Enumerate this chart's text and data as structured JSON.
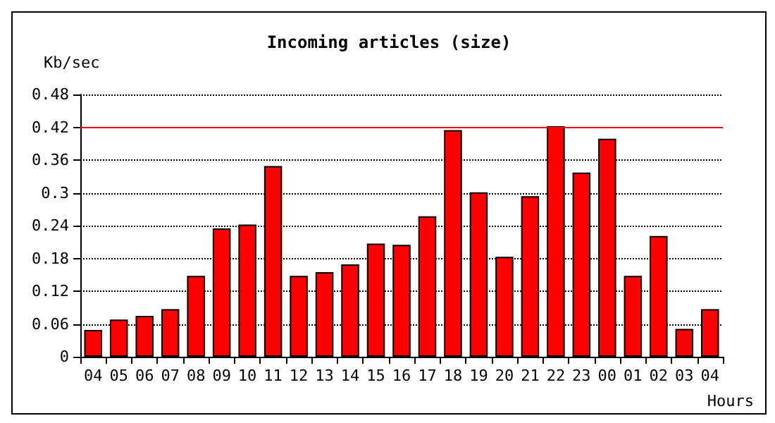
{
  "chart_data": {
    "type": "bar",
    "title": "Incoming articles (size)",
    "ylabel": "Kb/sec",
    "xlabel": "Hours",
    "categories": [
      "04",
      "05",
      "06",
      "07",
      "08",
      "09",
      "10",
      "11",
      "12",
      "13",
      "14",
      "15",
      "16",
      "17",
      "18",
      "19",
      "20",
      "21",
      "22",
      "23",
      "00",
      "01",
      "02",
      "03",
      "04"
    ],
    "values": [
      0.049,
      0.068,
      0.075,
      0.087,
      0.148,
      0.235,
      0.242,
      0.349,
      0.148,
      0.155,
      0.169,
      0.207,
      0.205,
      0.257,
      0.415,
      0.301,
      0.183,
      0.294,
      0.422,
      0.337,
      0.399,
      0.148,
      0.221,
      0.051,
      0.087
    ],
    "color": "#ff0000",
    "ylim": [
      0,
      0.48
    ],
    "yticks": [
      0,
      0.06,
      0.12,
      0.18,
      0.24,
      0.3,
      0.36,
      0.42,
      0.48
    ],
    "grid": "y",
    "ref_lines": [
      {
        "axis": "y",
        "value": 0.423,
        "color": "#ff0000"
      }
    ]
  }
}
